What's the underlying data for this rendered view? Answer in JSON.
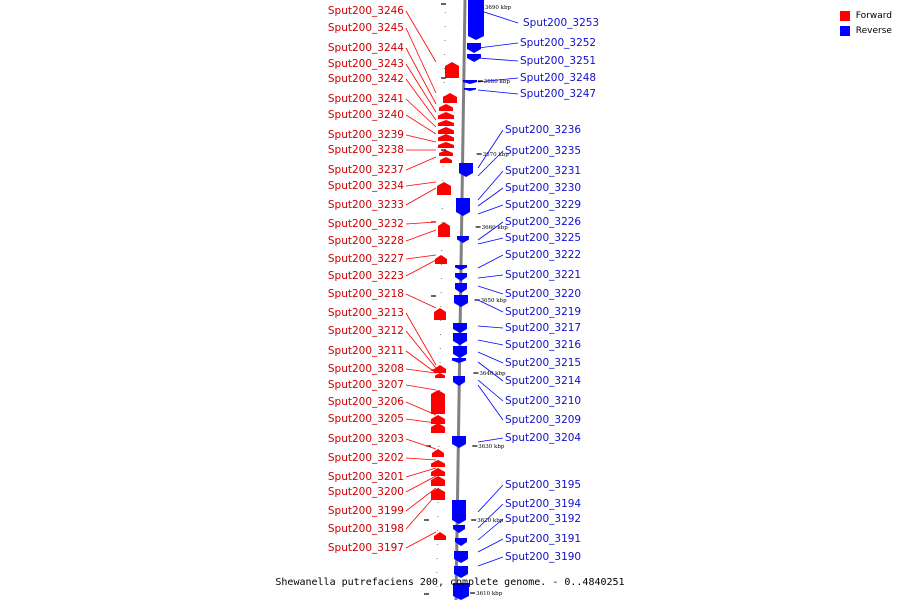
{
  "caption": "Shewanella putrefaciens 200, complete genome. - 0..4840251",
  "legend": [
    {
      "label": "Forward",
      "color": "#ff0000"
    },
    {
      "label": "Reverse",
      "color": "#0000ff"
    }
  ],
  "colors": {
    "forward": "#ff0000",
    "reverse": "#0000ff",
    "forward_label": "#cc0000",
    "reverse_label": "#1010cc",
    "backbone": "#808080"
  },
  "ticks": [
    "3690 kbp",
    "3680 kbp",
    "3670 kbp",
    "3660 kbp",
    "3650 kbp",
    "3640 kbp",
    "3630 kbp",
    "3620 kbp",
    "3610 kbp"
  ],
  "forward_genes": [
    "Sput200_3246",
    "Sput200_3245",
    "Sput200_3244",
    "Sput200_3243",
    "Sput200_3242",
    "Sput200_3241",
    "Sput200_3240",
    "Sput200_3239",
    "Sput200_3238",
    "Sput200_3237",
    "Sput200_3234",
    "Sput200_3233",
    "Sput200_3232",
    "Sput200_3228",
    "Sput200_3227",
    "Sput200_3223",
    "Sput200_3218",
    "Sput200_3213",
    "Sput200_3212",
    "Sput200_3211",
    "Sput200_3208",
    "Sput200_3207",
    "Sput200_3206",
    "Sput200_3205",
    "Sput200_3203",
    "Sput200_3202",
    "Sput200_3201",
    "Sput200_3200",
    "Sput200_3199",
    "Sput200_3198",
    "Sput200_3197"
  ],
  "reverse_genes": [
    "Sput200_3253",
    "Sput200_3252",
    "Sput200_3251",
    "Sput200_3248",
    "Sput200_3247",
    "Sput200_3236",
    "Sput200_3235",
    "Sput200_3231",
    "Sput200_3230",
    "Sput200_3229",
    "Sput200_3226",
    "Sput200_3225",
    "Sput200_3222",
    "Sput200_3221",
    "Sput200_3220",
    "Sput200_3219",
    "Sput200_3217",
    "Sput200_3216",
    "Sput200_3215",
    "Sput200_3214",
    "Sput200_3210",
    "Sput200_3209",
    "Sput200_3204",
    "Sput200_3195",
    "Sput200_3194",
    "Sput200_3192",
    "Sput200_3191",
    "Sput200_3190"
  ]
}
